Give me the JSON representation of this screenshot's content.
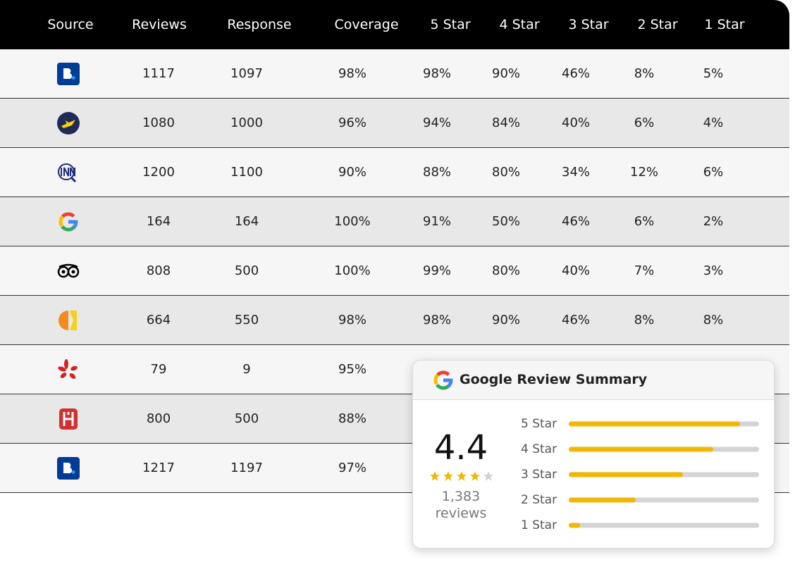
{
  "table": {
    "headers": [
      "Source",
      "Reviews",
      "Response",
      "Coverage",
      "5 Star",
      "4 Star",
      "3 Star",
      "2 Star",
      "1 Star"
    ],
    "rows": [
      [
        "1117",
        "1097",
        "98%",
        "98%",
        "90%",
        "46%",
        "8%",
        "5%"
      ],
      [
        "1080",
        "1000",
        "96%",
        "94%",
        "84%",
        "40%",
        "6%",
        "4%"
      ],
      [
        "1200",
        "1100",
        "90%",
        "88%",
        "80%",
        "34%",
        "12%",
        "6%"
      ],
      [
        "164",
        "164",
        "100%",
        "91%",
        "50%",
        "46%",
        "6%",
        "2%"
      ],
      [
        "808",
        "500",
        "100%",
        "99%",
        "80%",
        "40%",
        "7%",
        "3%"
      ],
      [
        "664",
        "550",
        "98%",
        "98%",
        "90%",
        "46%",
        "8%",
        "8%"
      ],
      [
        "79",
        "9",
        "95%"
      ],
      [
        "800",
        "500",
        "88%"
      ],
      [
        "1217",
        "1197",
        "97%"
      ]
    ]
  },
  "summary": {
    "title": "Google Review Summary",
    "rating": "4.4",
    "review_count": "1,383",
    "review_label": "reviews",
    "chart_data": {
      "type": "bar",
      "categories": [
        "5 Star",
        "4 Star",
        "3 Star",
        "2 Star",
        "1 Star"
      ],
      "values": [
        90,
        76,
        60,
        35,
        6
      ],
      "xlim": [
        0,
        100
      ],
      "color": "#f2b705"
    }
  }
}
